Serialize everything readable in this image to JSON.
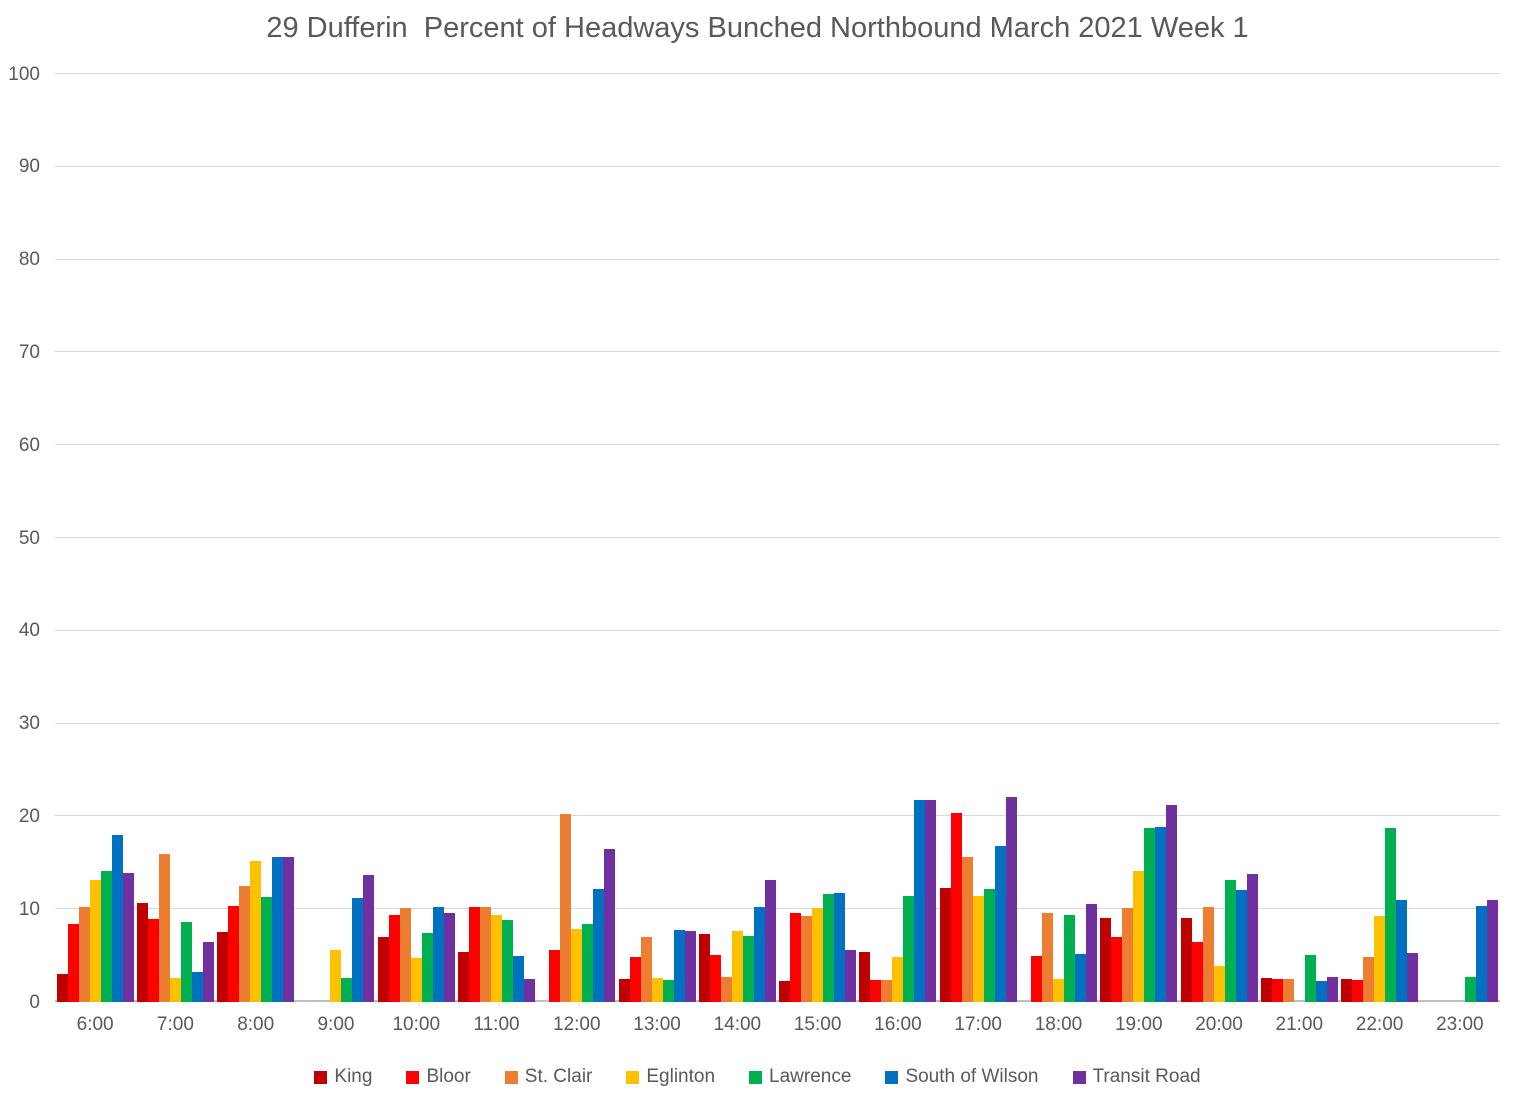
{
  "chart_data": {
    "type": "bar",
    "title": "29 Dufferin  Percent of Headways Bunched Northbound March 2021 Week 1",
    "categories": [
      "6:00",
      "7:00",
      "8:00",
      "9:00",
      "10:00",
      "11:00",
      "12:00",
      "13:00",
      "14:00",
      "15:00",
      "16:00",
      "17:00",
      "18:00",
      "19:00",
      "20:00",
      "21:00",
      "22:00",
      "23:00"
    ],
    "series": [
      {
        "name": "King",
        "color": "#C00000",
        "values": [
          3.0,
          10.7,
          7.5,
          0,
          7.0,
          5.4,
          0,
          2.5,
          7.3,
          2.3,
          5.4,
          12.3,
          0,
          9.1,
          9.0,
          2.6,
          2.5,
          0
        ]
      },
      {
        "name": "Bloor",
        "color": "#FF0000",
        "values": [
          8.4,
          8.9,
          10.3,
          0,
          9.4,
          10.2,
          5.6,
          4.8,
          5.1,
          9.6,
          2.4,
          20.4,
          5.0,
          7.0,
          6.5,
          2.5,
          2.4,
          0
        ]
      },
      {
        "name": "St. Clair",
        "color": "#ED7D31",
        "values": [
          10.2,
          16.0,
          12.5,
          0,
          10.1,
          10.2,
          20.3,
          7.0,
          2.7,
          9.3,
          2.4,
          15.6,
          9.6,
          10.1,
          10.2,
          2.5,
          4.9,
          0
        ]
      },
      {
        "name": "Eglinton",
        "color": "#FFC000",
        "values": [
          13.1,
          2.6,
          15.2,
          5.6,
          4.7,
          9.4,
          7.9,
          2.6,
          7.7,
          10.1,
          4.8,
          11.4,
          2.5,
          14.1,
          3.9,
          0,
          9.3,
          0
        ]
      },
      {
        "name": "Lawrence",
        "color": "#00B050",
        "values": [
          14.1,
          8.6,
          11.3,
          2.6,
          7.4,
          8.8,
          8.4,
          2.4,
          7.1,
          11.6,
          11.4,
          12.2,
          9.4,
          18.7,
          13.2,
          5.1,
          18.7,
          2.7
        ]
      },
      {
        "name": "South of Wilson",
        "color": "#0070C0",
        "values": [
          18.0,
          3.2,
          15.6,
          11.2,
          10.2,
          5.0,
          12.2,
          7.8,
          10.2,
          11.7,
          21.8,
          16.8,
          5.2,
          18.9,
          12.1,
          2.3,
          11.0,
          10.3
        ]
      },
      {
        "name": "Transit Road",
        "color": "#7030A0",
        "values": [
          13.9,
          6.5,
          15.6,
          13.7,
          9.6,
          2.5,
          16.5,
          7.6,
          13.1,
          5.6,
          21.8,
          22.1,
          10.6,
          21.2,
          13.8,
          2.7,
          5.3,
          11.0
        ]
      }
    ],
    "ylim": [
      0,
      100
    ],
    "ytick_step": 10,
    "ytick_labels": [
      "0",
      "10",
      "20",
      "30",
      "40",
      "50",
      "60",
      "70",
      "80",
      "90",
      "100"
    ],
    "grid": "horizontal",
    "legend_position": "bottom",
    "axis_text_color": "#595959",
    "gridline_color": "#D9D9D9",
    "axis_line_color": "#BFBFBF"
  }
}
